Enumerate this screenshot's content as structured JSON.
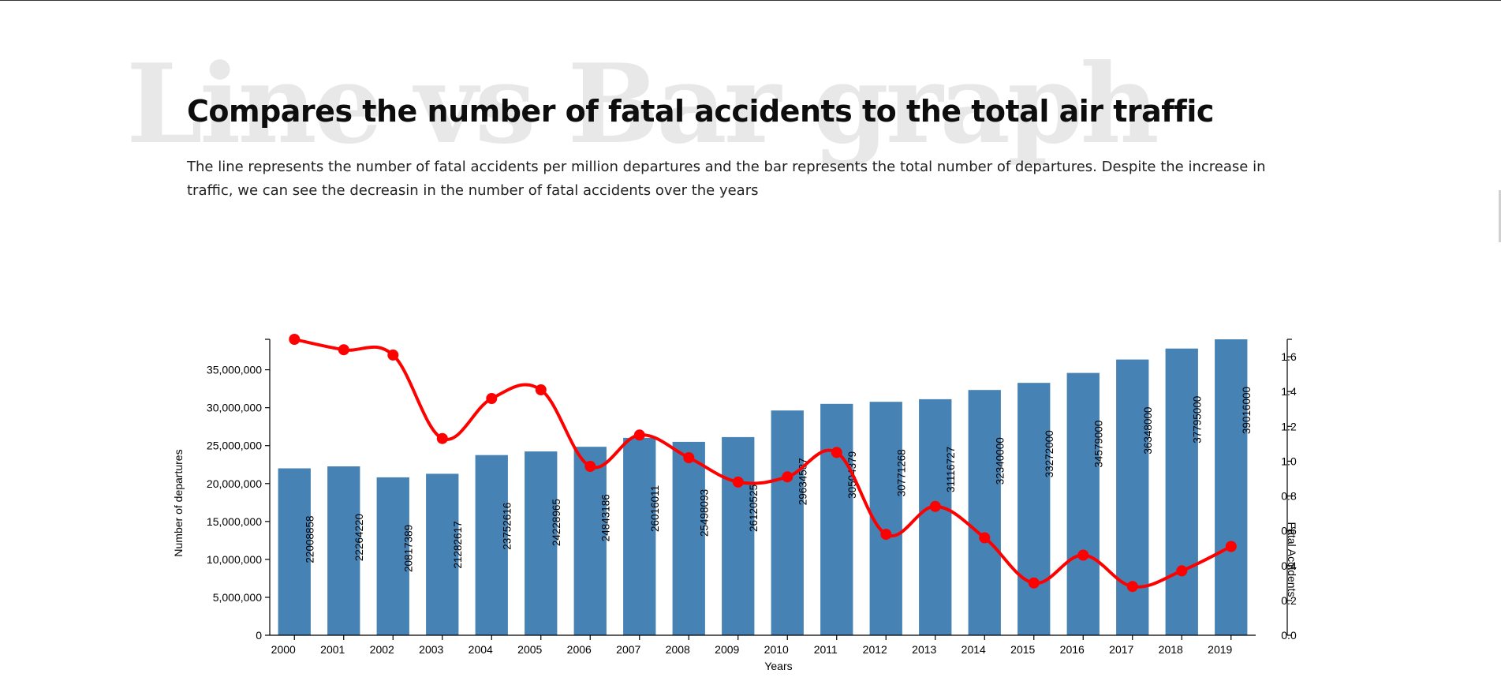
{
  "page": {
    "background_word": "Line vs Bar graph",
    "title": "Compares the number of fatal accidents to the total air traffic",
    "subtitle": "The line represents the number of fatal accidents per million departures and the bar represents the total number of departures. Despite the increase in traffic, we can see the decreasin in the number of fatal accidents over the years"
  },
  "chart_data": {
    "type": "bar",
    "xlabel": "Years",
    "ylabel": "Number of departures",
    "y2label": "Fatal Accidents",
    "categories": [
      "2000",
      "2001",
      "2002",
      "2003",
      "2004",
      "2005",
      "2006",
      "2007",
      "2008",
      "2009",
      "2010",
      "2011",
      "2012",
      "2013",
      "2014",
      "2015",
      "2016",
      "2017",
      "2018",
      "2019"
    ],
    "series": [
      {
        "name": "Number of departures",
        "type": "bar",
        "color": "#4682b4",
        "axis": "left",
        "values": [
          22008858,
          22264220,
          20817389,
          21282617,
          23752616,
          24228965,
          24843186,
          26016011,
          25498093,
          26120525,
          29634587,
          30504379,
          30771268,
          31116727,
          32340000,
          33272000,
          34579000,
          36348000,
          37795000,
          39016000
        ],
        "labels": [
          "22008858",
          "22264220",
          "20817389",
          "21282617",
          "23752616",
          "24228965",
          "24843186",
          "26016011",
          "25498093",
          "26120525",
          "29634587",
          "30504379",
          "30771268",
          "31116727",
          "32340000",
          "33272000",
          "34579000",
          "36348000",
          "37795000",
          "39016000"
        ]
      },
      {
        "name": "Fatal Accidents",
        "type": "line",
        "color": "#ff0000",
        "axis": "right",
        "values": [
          1.7,
          1.64,
          1.61,
          1.13,
          1.36,
          1.41,
          0.97,
          1.15,
          1.02,
          0.88,
          0.91,
          1.05,
          0.58,
          0.74,
          0.56,
          0.3,
          0.46,
          0.28,
          0.37,
          0.51
        ]
      }
    ],
    "ylim": [
      0,
      39016000
    ],
    "yticks": [
      "0",
      "5,000,000",
      "10,000,000",
      "15,000,000",
      "20,000,000",
      "25,000,000",
      "30,000,000",
      "35,000,000"
    ],
    "y2lim": [
      0,
      1.7
    ],
    "y2ticks": [
      "0.0",
      "0.2",
      "0.4",
      "0.6",
      "0.8",
      "1.0",
      "1.2",
      "1.4",
      "1.6"
    ],
    "grid": false,
    "legend": "none"
  }
}
